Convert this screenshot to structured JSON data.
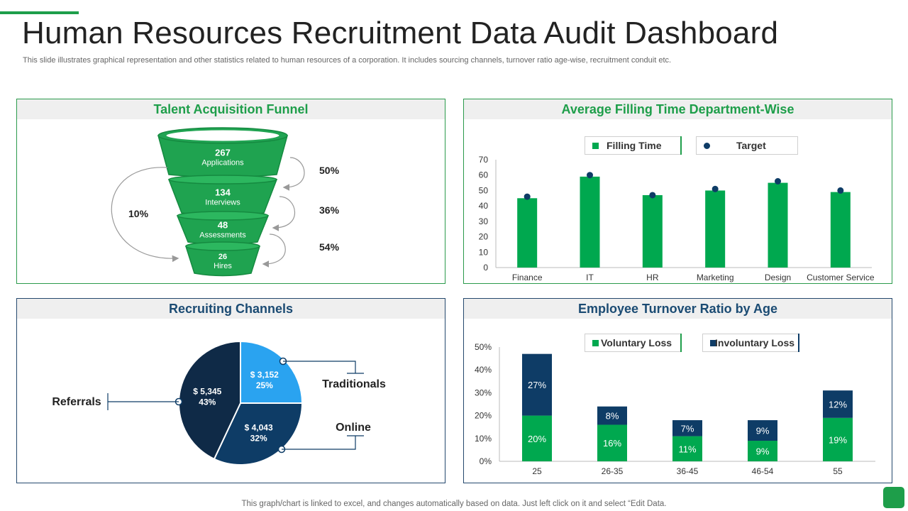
{
  "header": {
    "title": "Human Resources Recruitment Data Audit Dashboard",
    "subtitle": "This slide illustrates graphical representation and other statistics related to human resources of a  corporation. It includes sourcing channels, turnover ratio age-wise, recruitment conduit etc."
  },
  "footer": {
    "note": "This graph/chart is linked to excel,  and changes automatically based on data. Just left click on it and select “Edit Data."
  },
  "colors": {
    "green": "#00a84f",
    "dark_green": "#1e9e4a",
    "navy": "#1b4b73",
    "dark_navy": "#0e3c66",
    "light_blue": "#2aa3f0",
    "deep_navy": "#0f2a47"
  },
  "chart_data": [
    {
      "type": "funnel",
      "title": "Talent Acquisition Funnel",
      "stages": [
        {
          "value": "267",
          "label": "Applications"
        },
        {
          "value": "134",
          "label": "Interviews"
        },
        {
          "value": "48",
          "label": "Assessments"
        },
        {
          "value": "26",
          "label": "Hires"
        }
      ],
      "conversion_rates": [
        "50%",
        "36%",
        "54%"
      ],
      "overall_rate": "10%"
    },
    {
      "type": "bar",
      "title": "Average Filling Time Department-Wise",
      "categories": [
        "Finance",
        "IT",
        "HR",
        "Marketing",
        "Design",
        "Customer Service"
      ],
      "series": [
        {
          "name": "Filling Time",
          "type": "bar",
          "values": [
            45,
            59,
            47,
            50,
            55,
            49
          ]
        },
        {
          "name": "Target",
          "type": "scatter",
          "values": [
            46,
            60,
            47,
            51,
            56,
            50
          ]
        }
      ],
      "ylim": [
        0,
        70
      ],
      "yticks": [
        "0",
        "10",
        "20",
        "30",
        "40",
        "50",
        "60",
        "70"
      ],
      "legend": "top"
    },
    {
      "type": "pie",
      "title": "Recruiting Channels",
      "slices": [
        {
          "name": "Traditionals",
          "amount": "$ 3,152",
          "percent": "25%",
          "value": 25,
          "color": "#2aa3f0"
        },
        {
          "name": "Online",
          "amount": "$ 4,043",
          "percent": "32%",
          "value": 32,
          "color": "#0e3c66"
        },
        {
          "name": "Referrals",
          "amount": "$ 5,345",
          "percent": "43%",
          "value": 43,
          "color": "#0f2a47"
        }
      ]
    },
    {
      "type": "bar",
      "stacked": true,
      "title": "Employee Turnover Ratio by Age",
      "categories": [
        "25",
        "26-35",
        "36-45",
        "46-54",
        "55"
      ],
      "series": [
        {
          "name": "Voluntary Loss",
          "values": [
            20,
            16,
            11,
            9,
            19
          ],
          "labels": [
            "20%",
            "16%",
            "11%",
            "9%",
            "19%"
          ],
          "color": "#00a84f"
        },
        {
          "name": "Involuntary Loss",
          "values": [
            27,
            8,
            7,
            9,
            12
          ],
          "labels": [
            "27%",
            "8%",
            "7%",
            "9%",
            "12%"
          ],
          "color": "#0e3c66"
        }
      ],
      "ylim": [
        0,
        50
      ],
      "yticks": [
        "0%",
        "10%",
        "20%",
        "30%",
        "40%",
        "50%"
      ],
      "legend": "top"
    }
  ]
}
